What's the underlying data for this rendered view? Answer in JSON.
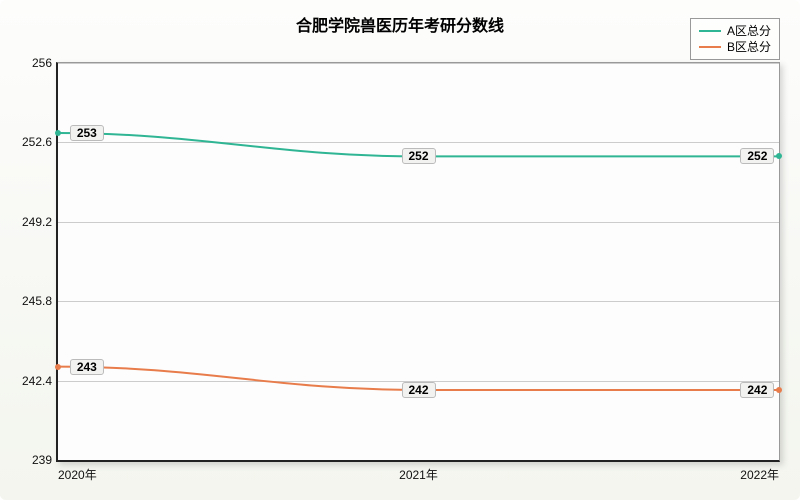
{
  "chart": {
    "type": "line",
    "title": "合肥学院兽医历年考研分数线",
    "title_fontsize": 16,
    "background_gradient": [
      "#fdfdfc",
      "#f3f5ee"
    ],
    "plot_background": "#fdfdfd",
    "border_color": "#222222",
    "grid_color": "#cccccc",
    "label_fontsize": 12,
    "y_axis": {
      "min": 239,
      "max": 256,
      "ticks": [
        239,
        242.4,
        245.8,
        249.2,
        252.6,
        256
      ],
      "tick_labels": [
        "239",
        "242.4",
        "245.8",
        "249.2",
        "252.6",
        "256"
      ]
    },
    "x_axis": {
      "categories": [
        "2020年",
        "2021年",
        "2022年"
      ],
      "positions_pct": [
        0,
        50,
        100
      ]
    },
    "legend": {
      "items": [
        {
          "label": "A区总分",
          "color": "#2fb593"
        },
        {
          "label": "B区总分",
          "color": "#e87c4a"
        }
      ]
    },
    "series": [
      {
        "name": "A区总分",
        "color": "#2fb593",
        "line_width": 2,
        "values": [
          253,
          252,
          252
        ],
        "data_labels": [
          "253",
          "252",
          "252"
        ]
      },
      {
        "name": "B区总分",
        "color": "#e87c4a",
        "line_width": 2,
        "values": [
          243,
          242,
          242
        ],
        "data_labels": [
          "243",
          "242",
          "242"
        ]
      }
    ]
  }
}
